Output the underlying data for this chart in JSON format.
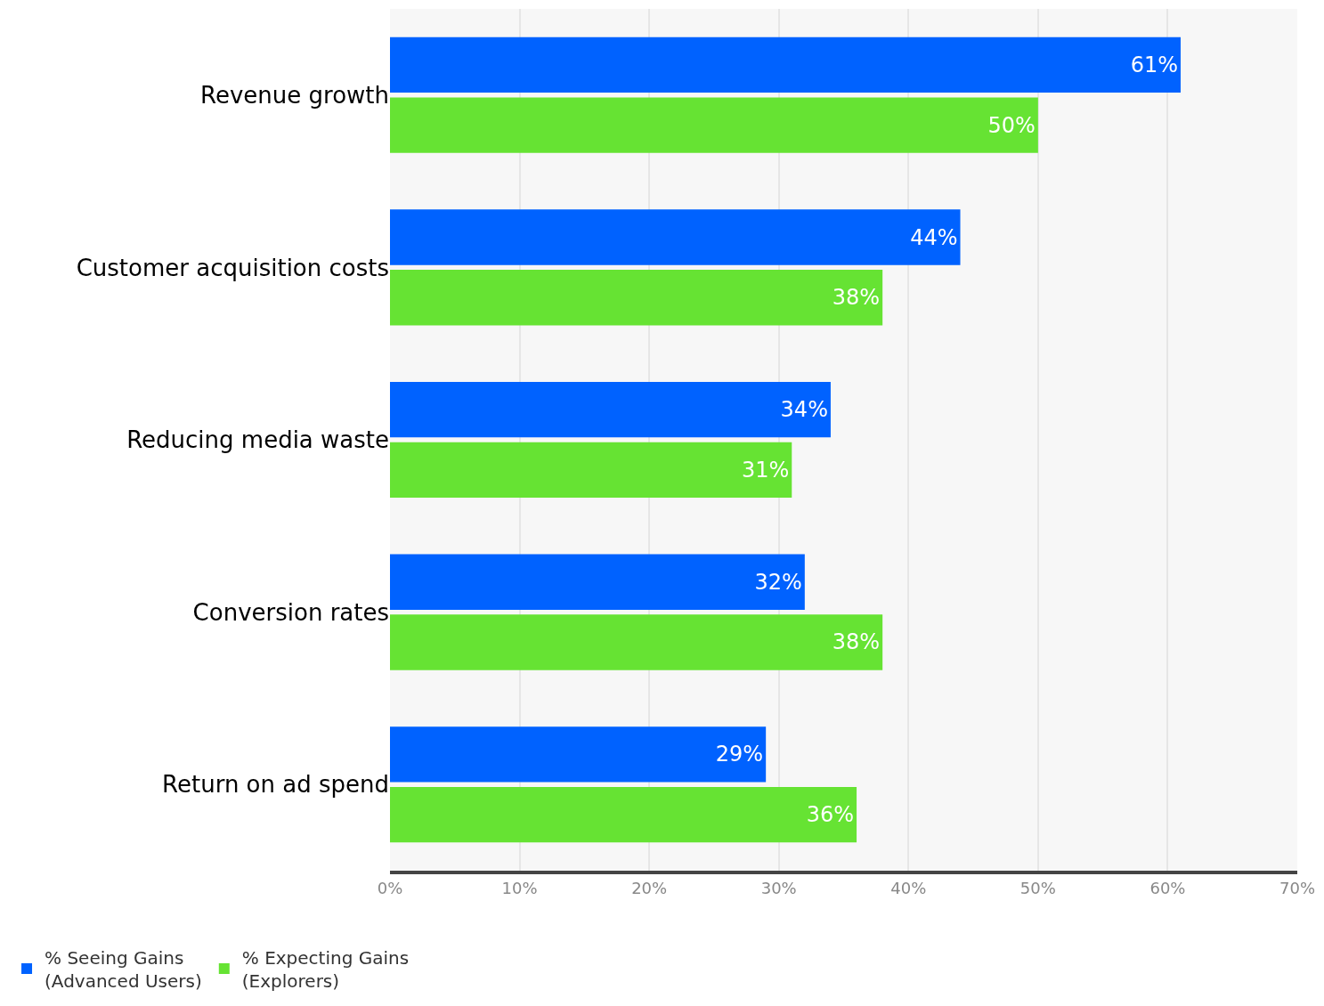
{
  "chart_data": {
    "type": "bar",
    "orientation": "horizontal",
    "categories": [
      "Revenue growth",
      "Customer acquisition costs",
      "Reducing media waste",
      "Conversion rates",
      "Return on ad spend"
    ],
    "series": [
      {
        "name": "% Seeing Gains\n(Advanced Users)",
        "color": "#0062ff",
        "values": [
          61,
          44,
          34,
          32,
          29
        ],
        "value_labels": [
          "61%",
          "44%",
          "34%",
          "32%",
          "29%"
        ]
      },
      {
        "name": "% Expecting Gains\n(Explorers)",
        "color": "#66e333",
        "values": [
          50,
          38,
          31,
          38,
          36
        ],
        "value_labels": [
          "50%",
          "38%",
          "31%",
          "38%",
          "36%"
        ]
      }
    ],
    "xlim": [
      0,
      70
    ],
    "xticks": [
      {
        "value": 0,
        "label": "0%"
      },
      {
        "value": 10,
        "label": "10%"
      },
      {
        "value": 20,
        "label": "20%"
      },
      {
        "value": 30,
        "label": "30%"
      },
      {
        "value": 40,
        "label": "40%"
      },
      {
        "value": 50,
        "label": "50%"
      },
      {
        "value": 60,
        "label": "60%"
      },
      {
        "value": 70,
        "label": "70%"
      }
    ],
    "grid": true,
    "legend": "bottom left"
  }
}
